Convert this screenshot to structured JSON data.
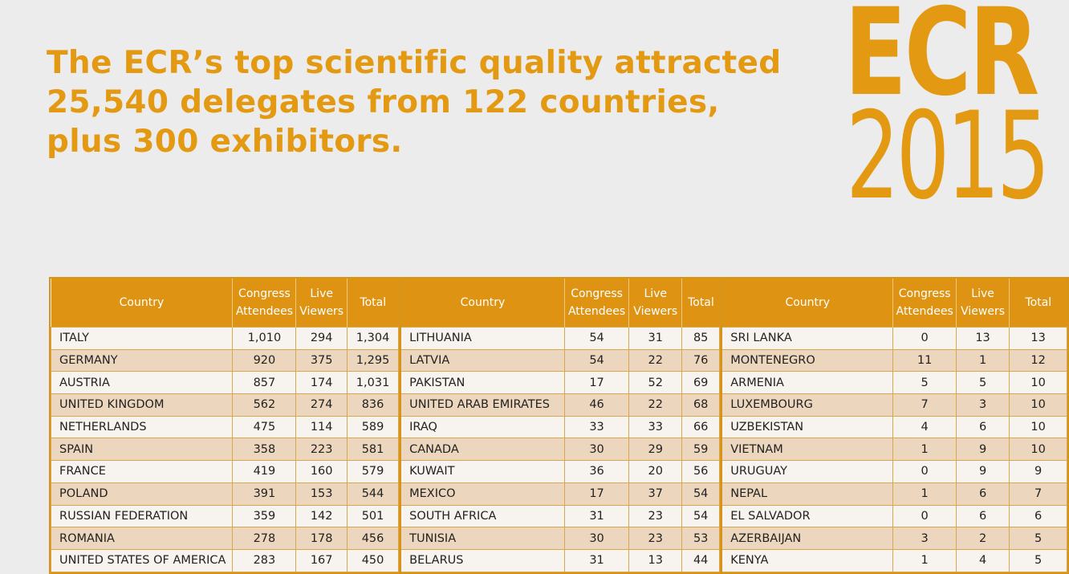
{
  "headline": {
    "lines": [
      "The ECR’s top scientific quality attracted",
      "25,540 delegates from 122 countries,",
      "plus 300 exhibitors."
    ]
  },
  "logo": {
    "top": "ECR",
    "bottom": "2015"
  },
  "table": {
    "headers": [
      "Country",
      "Congress Attendees",
      "Live Viewers",
      "Total"
    ],
    "columns": [
      [
        [
          "ITALY",
          "1,010",
          "294",
          "1,304"
        ],
        [
          "GERMANY",
          "920",
          "375",
          "1,295"
        ],
        [
          "AUSTRIA",
          "857",
          "174",
          "1,031"
        ],
        [
          "UNITED KINGDOM",
          "562",
          "274",
          "836"
        ],
        [
          "NETHERLANDS",
          "475",
          "114",
          "589"
        ],
        [
          "SPAIN",
          "358",
          "223",
          "581"
        ],
        [
          "FRANCE",
          "419",
          "160",
          "579"
        ],
        [
          "POLAND",
          "391",
          "153",
          "544"
        ],
        [
          "RUSSIAN FEDERATION",
          "359",
          "142",
          "501"
        ],
        [
          "ROMANIA",
          "278",
          "178",
          "456"
        ],
        [
          "UNITED STATES OF AMERICA",
          "283",
          "167",
          "450"
        ]
      ],
      [
        [
          "LITHUANIA",
          "54",
          "31",
          "85"
        ],
        [
          "LATVIA",
          "54",
          "22",
          "76"
        ],
        [
          "PAKISTAN",
          "17",
          "52",
          "69"
        ],
        [
          "UNITED ARAB EMIRATES",
          "46",
          "22",
          "68"
        ],
        [
          "IRAQ",
          "33",
          "33",
          "66"
        ],
        [
          "CANADA",
          "30",
          "29",
          "59"
        ],
        [
          "KUWAIT",
          "36",
          "20",
          "56"
        ],
        [
          "MEXICO",
          "17",
          "37",
          "54"
        ],
        [
          "SOUTH AFRICA",
          "31",
          "23",
          "54"
        ],
        [
          "TUNISIA",
          "30",
          "23",
          "53"
        ],
        [
          "BELARUS",
          "31",
          "13",
          "44"
        ]
      ],
      [
        [
          "SRI LANKA",
          "0",
          "13",
          "13"
        ],
        [
          "MONTENEGRO",
          "11",
          "1",
          "12"
        ],
        [
          "ARMENIA",
          "5",
          "5",
          "10"
        ],
        [
          "LUXEMBOURG",
          "7",
          "3",
          "10"
        ],
        [
          "UZBEKISTAN",
          "4",
          "6",
          "10"
        ],
        [
          "VIETNAM",
          "1",
          "9",
          "10"
        ],
        [
          "URUGUAY",
          "0",
          "9",
          "9"
        ],
        [
          "NEPAL",
          "1",
          "6",
          "7"
        ],
        [
          "EL SALVADOR",
          "0",
          "6",
          "6"
        ],
        [
          "AZERBAIJAN",
          "3",
          "2",
          "5"
        ],
        [
          "KENYA",
          "1",
          "4",
          "5"
        ]
      ]
    ]
  },
  "colors": {
    "accent": "#e39a12",
    "header_bg": "#de9412",
    "row_alt": "#ecd6bd"
  }
}
